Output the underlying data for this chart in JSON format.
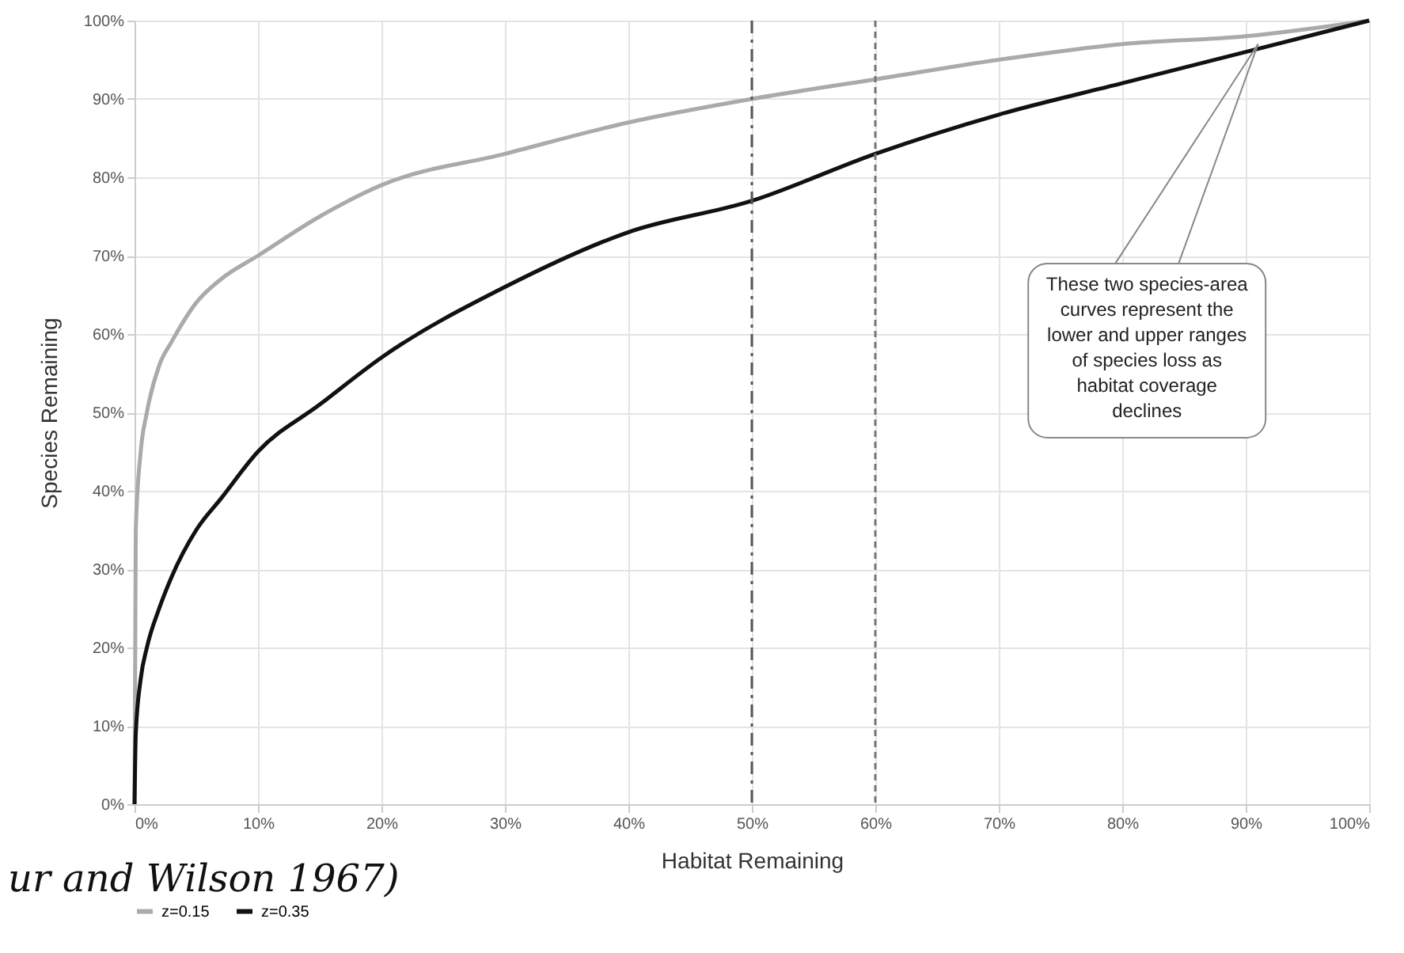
{
  "chart_data": {
    "type": "line",
    "xlabel": "Habitat Remaining",
    "ylabel": "Species Remaining",
    "x": [
      0,
      0.1,
      0.5,
      1,
      2,
      3,
      5,
      7,
      10,
      15,
      20,
      30,
      40,
      50,
      60,
      70,
      80,
      90,
      100
    ],
    "series": [
      {
        "name": "z=0.15",
        "color": "#aaaaaa",
        "values": [
          0,
          35,
          45,
          50,
          56,
          59,
          64,
          67,
          70,
          75,
          79,
          83,
          87,
          90,
          92.5,
          95,
          97,
          98,
          100
        ]
      },
      {
        "name": "z=0.35",
        "color": "#111111",
        "values": [
          0,
          9,
          16,
          20,
          25,
          29,
          35,
          39,
          45,
          51,
          57,
          66,
          73,
          77,
          83,
          88,
          92,
          96,
          100
        ]
      }
    ],
    "xlim": [
      0,
      100
    ],
    "ylim": [
      0,
      100
    ],
    "xticks": [
      {
        "value": 0,
        "label": "0%"
      },
      {
        "value": 10,
        "label": "10%"
      },
      {
        "value": 20,
        "label": "20%"
      },
      {
        "value": 30,
        "label": "30%"
      },
      {
        "value": 40,
        "label": "40%"
      },
      {
        "value": 50,
        "label": "50%"
      },
      {
        "value": 60,
        "label": "60%"
      },
      {
        "value": 70,
        "label": "70%"
      },
      {
        "value": 80,
        "label": "80%"
      },
      {
        "value": 90,
        "label": "90%"
      },
      {
        "value": 100,
        "label": "100%"
      }
    ],
    "yticks": [
      {
        "value": 0,
        "label": "0%"
      },
      {
        "value": 10,
        "label": "10%"
      },
      {
        "value": 20,
        "label": "20%"
      },
      {
        "value": 30,
        "label": "30%"
      },
      {
        "value": 40,
        "label": "40%"
      },
      {
        "value": 50,
        "label": "50%"
      },
      {
        "value": 60,
        "label": "60%"
      },
      {
        "value": 70,
        "label": "70%"
      },
      {
        "value": 80,
        "label": "80%"
      },
      {
        "value": 90,
        "label": "90%"
      },
      {
        "value": 100,
        "label": "100%"
      }
    ],
    "ref_lines": [
      {
        "axis": "x",
        "value": 50,
        "color": "#555555",
        "line_style": "dashed"
      },
      {
        "axis": "x",
        "value": 60,
        "color": "#777777",
        "line_style": "dotted"
      }
    ],
    "annotations": [
      {
        "text": "These two species-area curves represent the lower and upper ranges of species loss as habitat coverage declines",
        "x": 91,
        "y": 97
      },
      "ur and Wilson 1967)"
    ],
    "grid": true,
    "legend": "bottom",
    "marker": "none",
    "line_style": "solid"
  }
}
